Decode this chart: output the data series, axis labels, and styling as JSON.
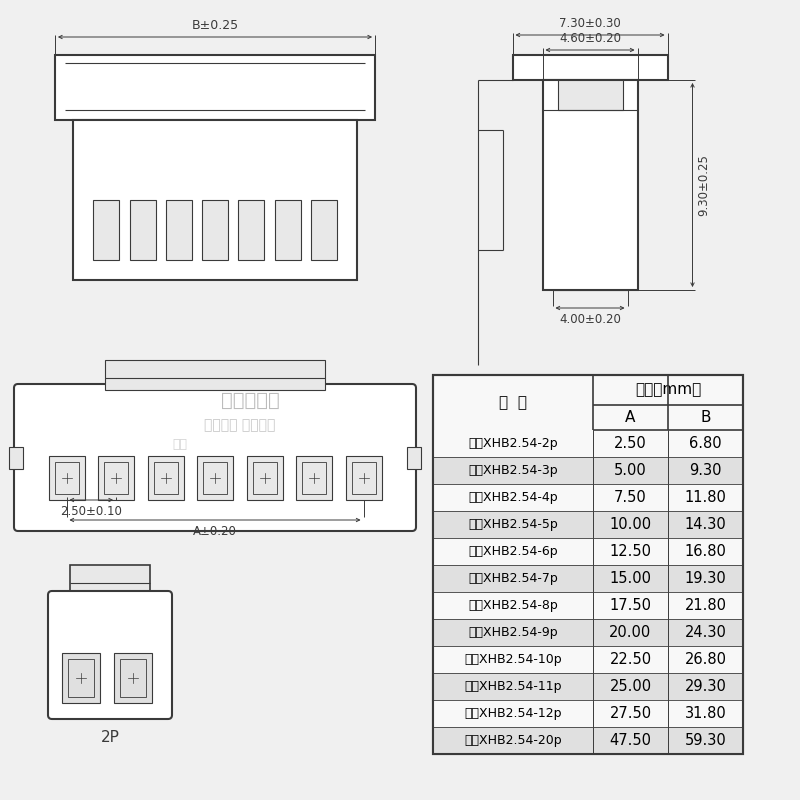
{
  "bg_color": "#f0f0f0",
  "line_color": "#3a3a3a",
  "table_row_bg_alt": "#e0e0e0",
  "table_row_bg": "#f8f8f8",
  "watermark_text1": "睯线旗舰店",
  "watermark_text2": "实物拍摄 盗图必究",
  "watermark_text3": "睯线",
  "table_title": "尺寸（mm）",
  "col_header_0": "编  号",
  "col_header_1": "A",
  "col_header_2": "B",
  "rows": [
    [
      "胶壳XHB2.54-2p",
      "2.50",
      "6.80"
    ],
    [
      "胶壳XHB2.54-3p",
      "5.00",
      "9.30"
    ],
    [
      "胶壳XHB2.54-4p",
      "7.50",
      "11.80"
    ],
    [
      "胶壳XHB2.54-5p",
      "10.00",
      "14.30"
    ],
    [
      "胶壳XHB2.54-6p",
      "12.50",
      "16.80"
    ],
    [
      "胶壳XHB2.54-7p",
      "15.00",
      "19.30"
    ],
    [
      "胶壳XHB2.54-8p",
      "17.50",
      "21.80"
    ],
    [
      "胶壳XHB2.54-9p",
      "20.00",
      "24.30"
    ],
    [
      "胶壳XHB2.54-10p",
      "22.50",
      "26.80"
    ],
    [
      "胶壳XHB2.54-11p",
      "25.00",
      "29.30"
    ],
    [
      "胶壳XHB2.54-12p",
      "27.50",
      "31.80"
    ],
    [
      "胶壳XHB2.54-20p",
      "47.50",
      "59.30"
    ]
  ],
  "dim_top_width": "7.30±0.30",
  "dim_mid_width": "4.60±0.20",
  "dim_right_h": "9.30±0.25",
  "dim_bot_width": "4.00±0.20",
  "dim_front_B": "B±0.25",
  "dim_pin_pitch": "2.50±0.10",
  "dim_A": "A±0.20",
  "label_2p": "2P"
}
